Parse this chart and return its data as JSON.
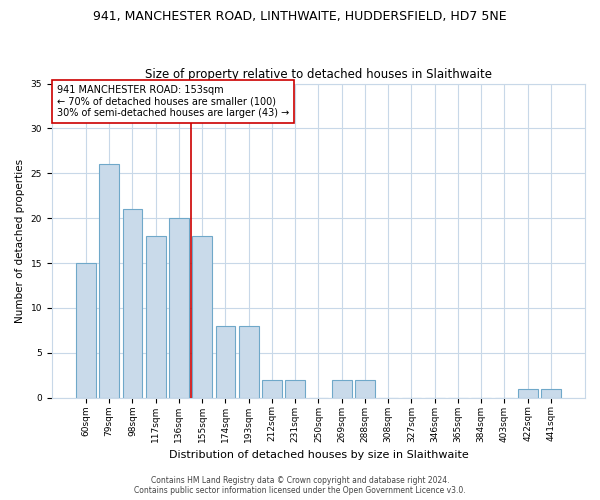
{
  "title": "941, MANCHESTER ROAD, LINTHWAITE, HUDDERSFIELD, HD7 5NE",
  "subtitle": "Size of property relative to detached houses in Slaithwaite",
  "xlabel": "Distribution of detached houses by size in Slaithwaite",
  "ylabel": "Number of detached properties",
  "categories": [
    "60sqm",
    "79sqm",
    "98sqm",
    "117sqm",
    "136sqm",
    "155sqm",
    "174sqm",
    "193sqm",
    "212sqm",
    "231sqm",
    "250sqm",
    "269sqm",
    "288sqm",
    "308sqm",
    "327sqm",
    "346sqm",
    "365sqm",
    "384sqm",
    "403sqm",
    "422sqm",
    "441sqm"
  ],
  "values": [
    15,
    26,
    21,
    18,
    20,
    18,
    8,
    8,
    2,
    2,
    0,
    2,
    2,
    0,
    0,
    0,
    0,
    0,
    0,
    1,
    1
  ],
  "bar_color": "#c9daea",
  "bar_edge_color": "#6fa8c9",
  "bar_width": 0.85,
  "vline_x": 4.5,
  "vline_color": "#cc0000",
  "annotation_text": "941 MANCHESTER ROAD: 153sqm\n← 70% of detached houses are smaller (100)\n30% of semi-detached houses are larger (43) →",
  "annotation_box_color": "#ffffff",
  "annotation_box_edge_color": "#cc0000",
  "ylim": [
    0,
    35
  ],
  "yticks": [
    0,
    5,
    10,
    15,
    20,
    25,
    30,
    35
  ],
  "footer_line1": "Contains HM Land Registry data © Crown copyright and database right 2024.",
  "footer_line2": "Contains public sector information licensed under the Open Government Licence v3.0.",
  "background_color": "#ffffff",
  "grid_color": "#c8d8e8",
  "title_fontsize": 9,
  "subtitle_fontsize": 8.5,
  "xlabel_fontsize": 8,
  "ylabel_fontsize": 7.5,
  "tick_fontsize": 6.5,
  "annotation_fontsize": 7,
  "footer_fontsize": 5.5
}
